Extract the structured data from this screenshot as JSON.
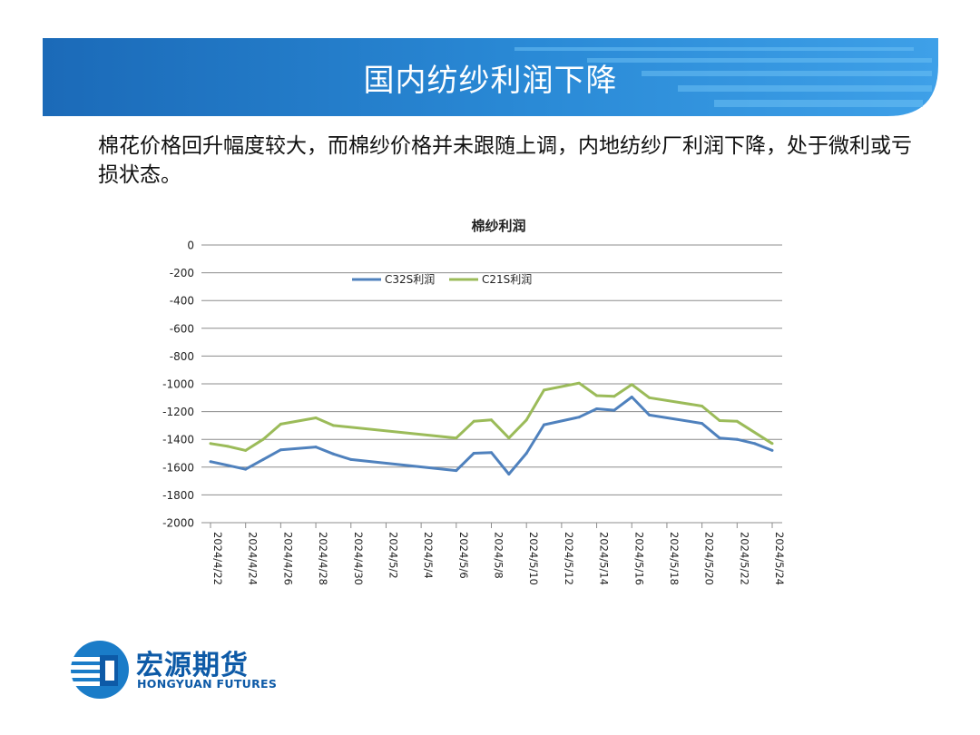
{
  "slide": {
    "title": "国内纺纱利润下降",
    "body": "棉花价格回升幅度较大，而棉纱价格并未跟随上调，内地纺纱厂利润下降，处于微利或亏损状态。"
  },
  "brand": {
    "name_cn": "宏源期货",
    "name_en": "HONGYUAN FUTURES",
    "color": "#0d5aa7"
  },
  "chart_data": {
    "type": "line",
    "title": "棉纱利润",
    "x_tick_labels": [
      "2024/4/22",
      "2024/4/24",
      "2024/4/26",
      "2024/4/28",
      "2024/4/30",
      "2024/5/2",
      "2024/5/4",
      "2024/5/6",
      "2024/5/8",
      "2024/5/10",
      "2024/5/12",
      "2024/5/14",
      "2024/5/16",
      "2024/5/18",
      "2024/5/20",
      "2024/5/22",
      "2024/5/24"
    ],
    "x_range": [
      "2024/4/22",
      "2024/5/24"
    ],
    "ylim": [
      -2000,
      0
    ],
    "y_ticks": [
      0,
      -200,
      -400,
      -600,
      -800,
      -1000,
      -1200,
      -1400,
      -1600,
      -1800,
      -2000
    ],
    "grid": true,
    "legend_position": "top",
    "series": [
      {
        "name": "C32S利润",
        "color": "#4f81bd",
        "points": [
          [
            "2024/4/22",
            -1560
          ],
          [
            "2024/4/24",
            -1615
          ],
          [
            "2024/4/25",
            -1545
          ],
          [
            "2024/4/26",
            -1475
          ],
          [
            "2024/4/28",
            -1455
          ],
          [
            "2024/4/29",
            -1505
          ],
          [
            "2024/4/30",
            -1545
          ],
          [
            "2024/5/6",
            -1625
          ],
          [
            "2024/5/7",
            -1500
          ],
          [
            "2024/5/8",
            -1495
          ],
          [
            "2024/5/9",
            -1650
          ],
          [
            "2024/5/10",
            -1500
          ],
          [
            "2024/5/11",
            -1295
          ],
          [
            "2024/5/13",
            -1240
          ],
          [
            "2024/5/14",
            -1180
          ],
          [
            "2024/5/15",
            -1190
          ],
          [
            "2024/5/16",
            -1095
          ],
          [
            "2024/5/17",
            -1225
          ],
          [
            "2024/5/20",
            -1285
          ],
          [
            "2024/5/21",
            -1390
          ],
          [
            "2024/5/22",
            -1400
          ],
          [
            "2024/5/23",
            -1430
          ],
          [
            "2024/5/24",
            -1480
          ]
        ]
      },
      {
        "name": "C21S利润",
        "color": "#9bbb59",
        "points": [
          [
            "2024/4/22",
            -1430
          ],
          [
            "2024/4/23",
            -1450
          ],
          [
            "2024/4/24",
            -1480
          ],
          [
            "2024/4/25",
            -1400
          ],
          [
            "2024/4/26",
            -1290
          ],
          [
            "2024/4/28",
            -1245
          ],
          [
            "2024/4/29",
            -1300
          ],
          [
            "2024/5/6",
            -1390
          ],
          [
            "2024/5/7",
            -1270
          ],
          [
            "2024/5/8",
            -1260
          ],
          [
            "2024/5/9",
            -1390
          ],
          [
            "2024/5/10",
            -1260
          ],
          [
            "2024/5/11",
            -1045
          ],
          [
            "2024/5/13",
            -995
          ],
          [
            "2024/5/14",
            -1085
          ],
          [
            "2024/5/15",
            -1090
          ],
          [
            "2024/5/16",
            -1005
          ],
          [
            "2024/5/17",
            -1100
          ],
          [
            "2024/5/20",
            -1160
          ],
          [
            "2024/5/21",
            -1265
          ],
          [
            "2024/5/22",
            -1270
          ],
          [
            "2024/5/24",
            -1430
          ]
        ]
      }
    ]
  }
}
